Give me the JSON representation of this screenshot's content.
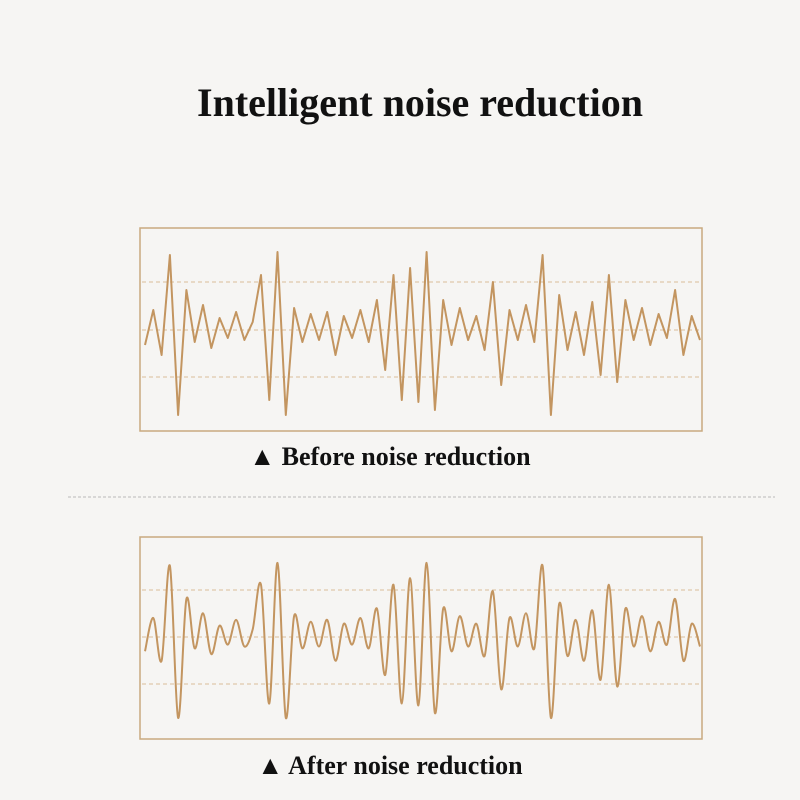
{
  "header": {
    "title": "Intelligent noise reduction"
  },
  "panels": [
    {
      "caption": "▲  Before noise reduction"
    },
    {
      "caption": "▲  After noise reduction"
    }
  ]
}
